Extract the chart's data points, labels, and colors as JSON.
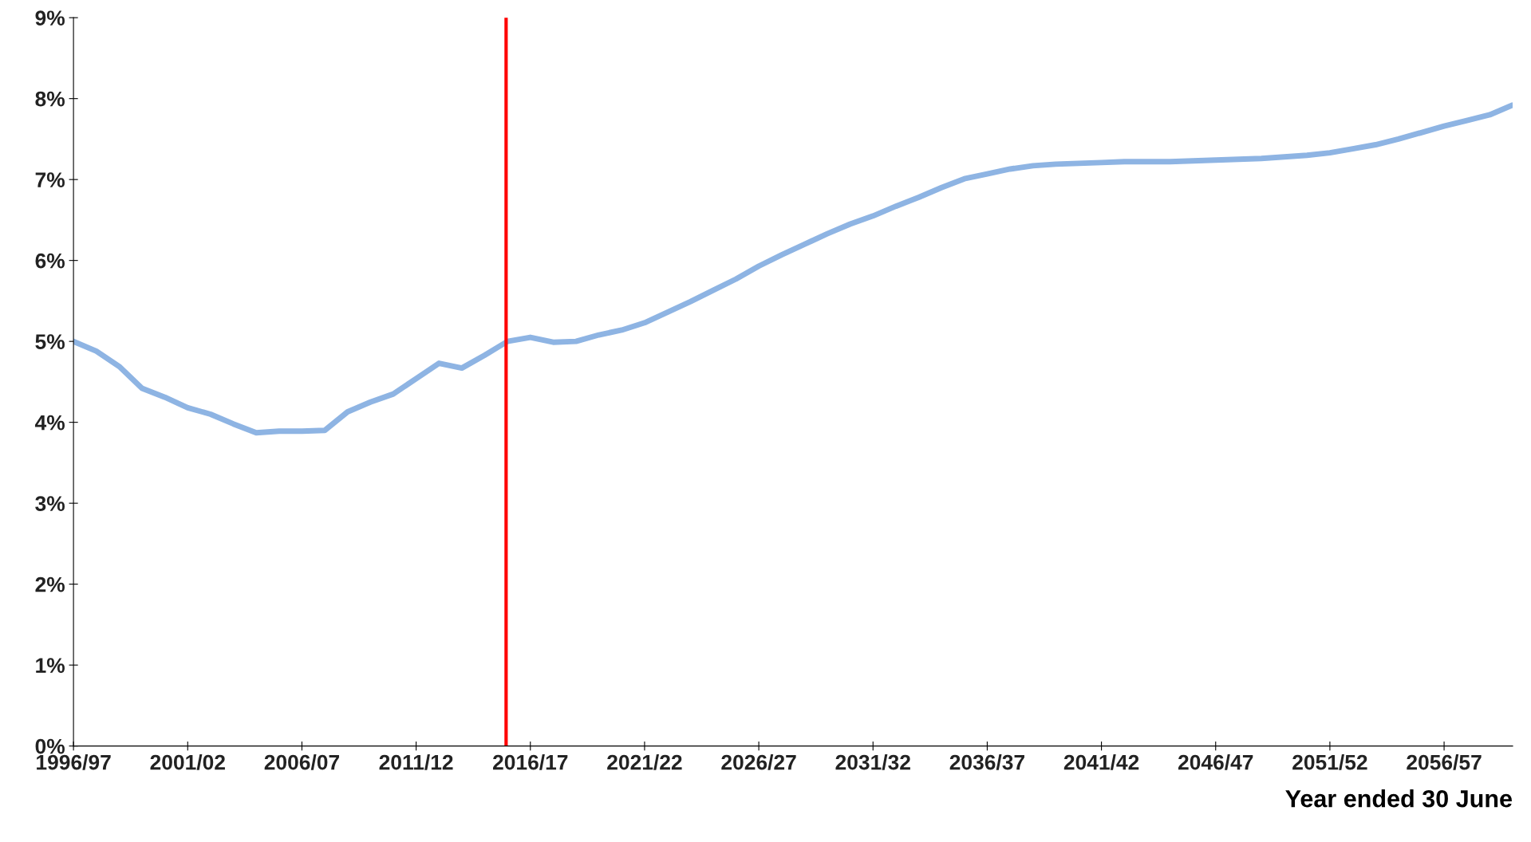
{
  "chart_data": {
    "type": "line",
    "xlabel": "Year ended 30 June",
    "categories": [
      "1996/97",
      null,
      null,
      null,
      null,
      "2001/02",
      null,
      null,
      null,
      null,
      "2006/07",
      null,
      null,
      null,
      null,
      "2011/12",
      null,
      null,
      null,
      null,
      "2016/17",
      null,
      null,
      null,
      null,
      "2021/22",
      null,
      null,
      null,
      null,
      "2026/27",
      null,
      null,
      null,
      null,
      "2031/32",
      null,
      null,
      null,
      null,
      "2036/37",
      null,
      null,
      null,
      null,
      "2041/42",
      null,
      null,
      null,
      null,
      "2046/47",
      null,
      null,
      null,
      null,
      "2051/52",
      null,
      null,
      null,
      null,
      "2056/57",
      null,
      null,
      null
    ],
    "series": [
      {
        "color": "#8eb4e3",
        "values": [
          5.0,
          4.88,
          4.69,
          4.42,
          4.31,
          4.18,
          4.1,
          3.98,
          3.87,
          3.89,
          3.89,
          3.9,
          4.13,
          4.25,
          4.35,
          4.54,
          4.73,
          4.67,
          4.83,
          5.0,
          5.05,
          4.99,
          5.0,
          5.08,
          5.14,
          5.23,
          5.36,
          5.49,
          5.63,
          5.77,
          5.93,
          6.07,
          6.2,
          6.33,
          6.45,
          6.55,
          6.67,
          6.78,
          6.9,
          7.01,
          7.07,
          7.13,
          7.17,
          7.19,
          7.2,
          7.21,
          7.22,
          7.22,
          7.22,
          7.23,
          7.24,
          7.25,
          7.26,
          7.28,
          7.3,
          7.33,
          7.38,
          7.43,
          7.5,
          7.58,
          7.66,
          7.73,
          7.8,
          7.92
        ]
      }
    ],
    "ylim": [
      0,
      9
    ],
    "yticks": [
      {
        "value": 0,
        "label": "0%"
      },
      {
        "value": 1,
        "label": "1%"
      },
      {
        "value": 2,
        "label": "2%"
      },
      {
        "value": 3,
        "label": "3%"
      },
      {
        "value": 4,
        "label": "4%"
      },
      {
        "value": 5,
        "label": "5%"
      },
      {
        "value": 6,
        "label": "6%"
      },
      {
        "value": 7,
        "label": "7%"
      },
      {
        "value": 8,
        "label": "8%"
      },
      {
        "value": 9,
        "label": "9%"
      }
    ],
    "grid": false,
    "legend": false
  }
}
